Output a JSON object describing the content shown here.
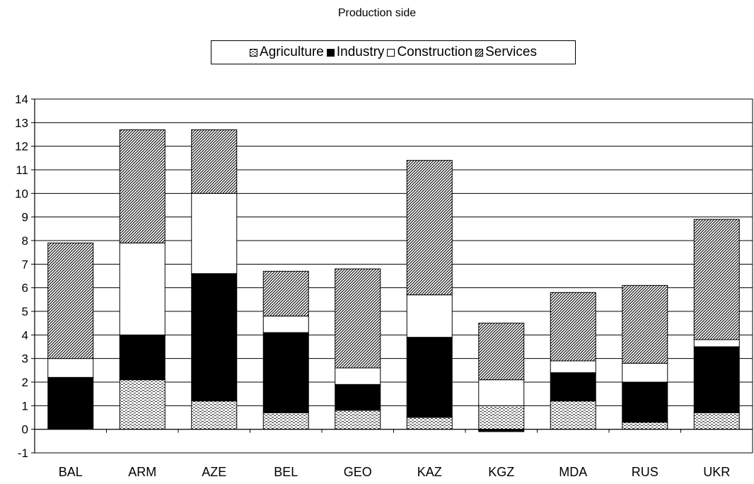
{
  "chart_data": {
    "type": "bar",
    "stacked": true,
    "title": "Production side",
    "xlabel": "",
    "ylabel": "",
    "ylim": [
      -1,
      14
    ],
    "yticks": [
      "-1",
      "0",
      "1",
      "2",
      "3",
      "4",
      "5",
      "6",
      "7",
      "8",
      "9",
      "10",
      "11",
      "12",
      "13",
      "14"
    ],
    "grid": true,
    "legend_position": "top",
    "categories": [
      "BAL",
      "ARM",
      "AZE",
      "BEL",
      "GEO",
      "KAZ",
      "KGZ",
      "MDA",
      "RUS",
      "UKR"
    ],
    "series": [
      {
        "name": "Agriculture",
        "pattern": "dashes",
        "values": [
          0.0,
          2.1,
          1.2,
          0.7,
          0.8,
          0.5,
          1.0,
          1.2,
          0.3,
          0.7
        ]
      },
      {
        "name": "Industry",
        "pattern": "solid-black",
        "values": [
          2.2,
          1.9,
          5.4,
          3.4,
          1.1,
          3.4,
          -0.1,
          1.2,
          1.7,
          2.8
        ]
      },
      {
        "name": "Construction",
        "pattern": "white",
        "values": [
          0.8,
          3.9,
          3.4,
          0.7,
          0.7,
          1.8,
          1.1,
          0.5,
          0.8,
          0.3
        ]
      },
      {
        "name": "Services",
        "pattern": "diagonal-hatch",
        "values": [
          4.9,
          4.8,
          2.7,
          1.9,
          4.2,
          5.7,
          2.4,
          2.9,
          3.3,
          5.1
        ]
      }
    ]
  }
}
